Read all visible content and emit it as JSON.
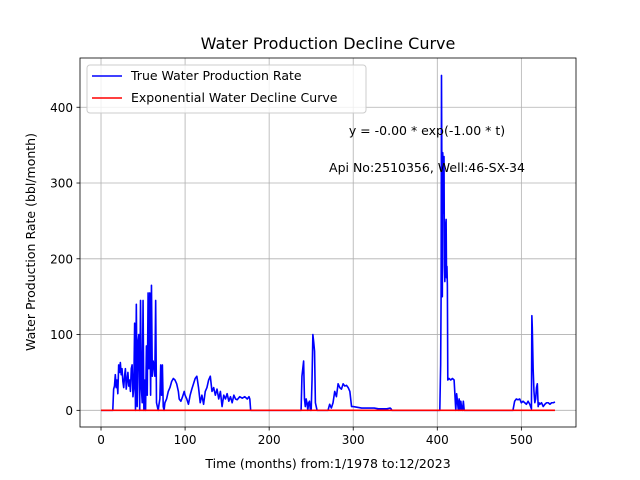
{
  "chart_data": {
    "type": "line",
    "title": "Water Production Decline Curve",
    "xlabel": "Time (months) from:1/1978 to:12/2023",
    "ylabel": "Water Production Rate (bbl/month)",
    "xlim": [
      -25,
      565
    ],
    "ylim": [
      -22,
      465
    ],
    "xticks": [
      0,
      100,
      200,
      300,
      400,
      500
    ],
    "yticks": [
      0,
      100,
      200,
      300,
      400
    ],
    "grid": true,
    "legend_position": "top-left",
    "annotations": [
      "y = -0.00 * exp(-1.00 * t)",
      "Api No:2510356, Well:46-SX-34"
    ],
    "series": [
      {
        "name": "True Water Production Rate",
        "color": "#0000ff",
        "points": [
          [
            0,
            0
          ],
          [
            10,
            0
          ],
          [
            14,
            0
          ],
          [
            15,
            28
          ],
          [
            16,
            32
          ],
          [
            17,
            47
          ],
          [
            18,
            30
          ],
          [
            19,
            40
          ],
          [
            20,
            22
          ],
          [
            21,
            60
          ],
          [
            22,
            50
          ],
          [
            23,
            63
          ],
          [
            24,
            47
          ],
          [
            25,
            55
          ],
          [
            26,
            38
          ],
          [
            27,
            30
          ],
          [
            28,
            45
          ],
          [
            29,
            55
          ],
          [
            30,
            28
          ],
          [
            31,
            40
          ],
          [
            32,
            50
          ],
          [
            33,
            32
          ],
          [
            34,
            40
          ],
          [
            35,
            25
          ],
          [
            36,
            55
          ],
          [
            37,
            60
          ],
          [
            38,
            18
          ],
          [
            39,
            30
          ],
          [
            40,
            115
          ],
          [
            41,
            0
          ],
          [
            42,
            140
          ],
          [
            43,
            5
          ],
          [
            44,
            90
          ],
          [
            45,
            100
          ],
          [
            46,
            0
          ],
          [
            47,
            145
          ],
          [
            48,
            30
          ],
          [
            49,
            10
          ],
          [
            50,
            145
          ],
          [
            51,
            0
          ],
          [
            52,
            40
          ],
          [
            53,
            0
          ],
          [
            54,
            85
          ],
          [
            55,
            20
          ],
          [
            56,
            155
          ],
          [
            57,
            55
          ],
          [
            58,
            155
          ],
          [
            59,
            20
          ],
          [
            60,
            165
          ],
          [
            61,
            45
          ],
          [
            62,
            65
          ],
          [
            63,
            60
          ],
          [
            64,
            45
          ],
          [
            65,
            145
          ],
          [
            66,
            10
          ],
          [
            67,
            5
          ],
          [
            68,
            0
          ],
          [
            69,
            8
          ],
          [
            70,
            15
          ],
          [
            71,
            60
          ],
          [
            72,
            20
          ],
          [
            73,
            60
          ],
          [
            74,
            5
          ],
          [
            75,
            0
          ],
          [
            76,
            10
          ],
          [
            78,
            15
          ],
          [
            80,
            25
          ],
          [
            82,
            30
          ],
          [
            84,
            38
          ],
          [
            86,
            42
          ],
          [
            88,
            40
          ],
          [
            90,
            35
          ],
          [
            92,
            25
          ],
          [
            93,
            15
          ],
          [
            95,
            12
          ],
          [
            97,
            18
          ],
          [
            99,
            25
          ],
          [
            100,
            20
          ],
          [
            102,
            15
          ],
          [
            104,
            8
          ],
          [
            106,
            20
          ],
          [
            108,
            28
          ],
          [
            110,
            35
          ],
          [
            112,
            42
          ],
          [
            114,
            45
          ],
          [
            116,
            30
          ],
          [
            118,
            10
          ],
          [
            120,
            20
          ],
          [
            122,
            8
          ],
          [
            124,
            25
          ],
          [
            126,
            30
          ],
          [
            128,
            40
          ],
          [
            130,
            45
          ],
          [
            132,
            25
          ],
          [
            134,
            30
          ],
          [
            136,
            20
          ],
          [
            138,
            28
          ],
          [
            140,
            15
          ],
          [
            142,
            25
          ],
          [
            144,
            5
          ],
          [
            146,
            20
          ],
          [
            148,
            15
          ],
          [
            150,
            22
          ],
          [
            152,
            12
          ],
          [
            154,
            18
          ],
          [
            156,
            10
          ],
          [
            158,
            20
          ],
          [
            160,
            15
          ],
          [
            162,
            14
          ],
          [
            165,
            18
          ],
          [
            168,
            16
          ],
          [
            171,
            18
          ],
          [
            174,
            15
          ],
          [
            176,
            18
          ],
          [
            177,
            15
          ],
          [
            178,
            0
          ],
          [
            200,
            0
          ],
          [
            220,
            0
          ],
          [
            238,
            0
          ],
          [
            239,
            45
          ],
          [
            240,
            55
          ],
          [
            241,
            65
          ],
          [
            242,
            15
          ],
          [
            243,
            5
          ],
          [
            244,
            15
          ],
          [
            245,
            10
          ],
          [
            246,
            0
          ],
          [
            247,
            10
          ],
          [
            248,
            12
          ],
          [
            249,
            0
          ],
          [
            250,
            0
          ],
          [
            251,
            40
          ],
          [
            252,
            100
          ],
          [
            253,
            90
          ],
          [
            254,
            78
          ],
          [
            255,
            10
          ],
          [
            256,
            5
          ],
          [
            257,
            0
          ],
          [
            265,
            0
          ],
          [
            270,
            0
          ],
          [
            272,
            8
          ],
          [
            274,
            3
          ],
          [
            276,
            10
          ],
          [
            278,
            25
          ],
          [
            280,
            18
          ],
          [
            282,
            35
          ],
          [
            284,
            30
          ],
          [
            286,
            28
          ],
          [
            288,
            35
          ],
          [
            290,
            32
          ],
          [
            292,
            33
          ],
          [
            294,
            30
          ],
          [
            296,
            25
          ],
          [
            298,
            5
          ],
          [
            300,
            5
          ],
          [
            305,
            4
          ],
          [
            310,
            3
          ],
          [
            315,
            3
          ],
          [
            320,
            3
          ],
          [
            325,
            3
          ],
          [
            330,
            2
          ],
          [
            335,
            2
          ],
          [
            340,
            2
          ],
          [
            344,
            3
          ],
          [
            345,
            2
          ],
          [
            346,
            0
          ],
          [
            360,
            0
          ],
          [
            380,
            0
          ],
          [
            395,
            0
          ],
          [
            400,
            0
          ],
          [
            403,
            0
          ],
          [
            404,
            60
          ],
          [
            404.5,
            145
          ],
          [
            405,
            442
          ],
          [
            405.5,
            300
          ],
          [
            406,
            150
          ],
          [
            406.5,
            340
          ],
          [
            407,
            310
          ],
          [
            407.5,
            260
          ],
          [
            408,
            335
          ],
          [
            408.5,
            190
          ],
          [
            409,
            170
          ],
          [
            409.5,
            205
          ],
          [
            410,
            245
          ],
          [
            410.5,
            252
          ],
          [
            411,
            175
          ],
          [
            411.5,
            190
          ],
          [
            412,
            165
          ],
          [
            412.5,
            40
          ],
          [
            414,
            42
          ],
          [
            416,
            40
          ],
          [
            418,
            42
          ],
          [
            420,
            40
          ],
          [
            421,
            20
          ],
          [
            422,
            0
          ],
          [
            423,
            22
          ],
          [
            424,
            12
          ],
          [
            425,
            0
          ],
          [
            426,
            15
          ],
          [
            427,
            0
          ],
          [
            428,
            12
          ],
          [
            429,
            2
          ],
          [
            430,
            0
          ],
          [
            431,
            12
          ],
          [
            432,
            0
          ],
          [
            440,
            0
          ],
          [
            460,
            0
          ],
          [
            480,
            0
          ],
          [
            490,
            0
          ],
          [
            492,
            12
          ],
          [
            494,
            15
          ],
          [
            496,
            14
          ],
          [
            498,
            15
          ],
          [
            500,
            10
          ],
          [
            502,
            12
          ],
          [
            504,
            10
          ],
          [
            506,
            8
          ],
          [
            508,
            12
          ],
          [
            510,
            8
          ],
          [
            512,
            2
          ],
          [
            512.5,
            125
          ],
          [
            513,
            110
          ],
          [
            514,
            55
          ],
          [
            515,
            25
          ],
          [
            516,
            10
          ],
          [
            517,
            15
          ],
          [
            518,
            30
          ],
          [
            519,
            35
          ],
          [
            520,
            5
          ],
          [
            521,
            10
          ],
          [
            522,
            8
          ],
          [
            524,
            10
          ],
          [
            526,
            5
          ],
          [
            528,
            8
          ],
          [
            530,
            10
          ],
          [
            532,
            10
          ],
          [
            534,
            8
          ],
          [
            536,
            10
          ],
          [
            538,
            10
          ],
          [
            540,
            11
          ]
        ]
      },
      {
        "name": "Exponential Water Decline Curve",
        "color": "#ff0000",
        "points": [
          [
            0,
            0
          ],
          [
            540,
            0
          ]
        ]
      }
    ]
  }
}
